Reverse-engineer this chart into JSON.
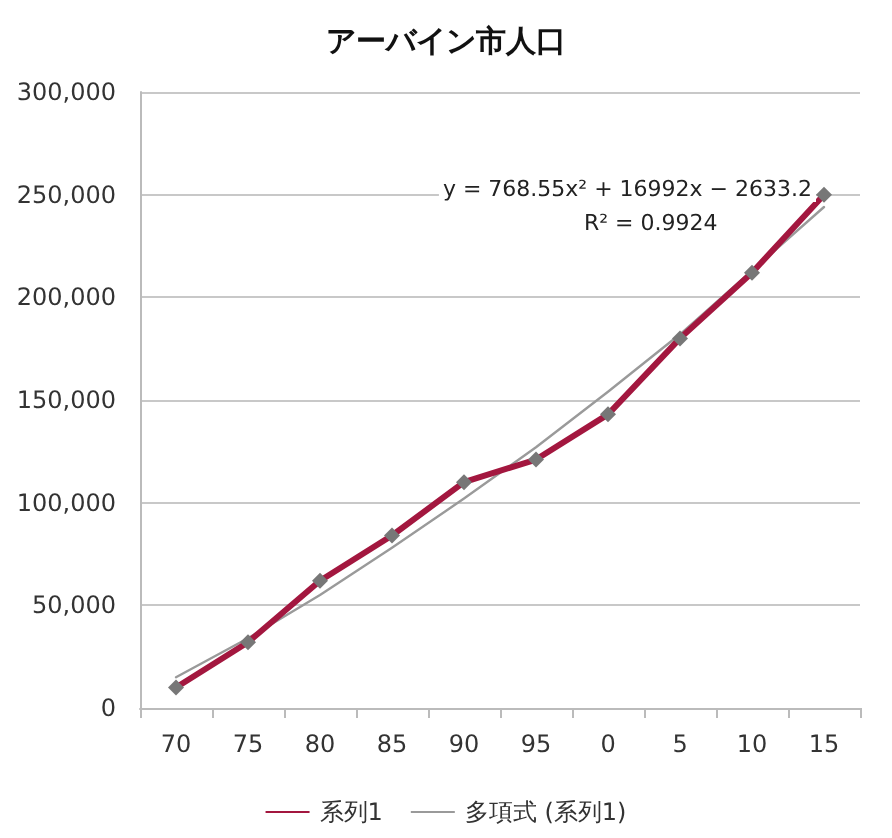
{
  "chart_data": {
    "type": "line",
    "title": "アーバイン市人口",
    "categories": [
      "70",
      "75",
      "80",
      "85",
      "90",
      "95",
      "0",
      "5",
      "10",
      "15"
    ],
    "series": [
      {
        "name": "系列1",
        "color": "#a3173f",
        "values": [
          10000,
          32000,
          62000,
          84000,
          110000,
          121000,
          143000,
          180000,
          212000,
          250000
        ],
        "marker": "diamond"
      },
      {
        "name": "多項式 (系列1)",
        "color": "#9a9a9a",
        "values": [
          15000,
          34000,
          55000,
          78000,
          102000,
          127000,
          154000,
          182000,
          213000,
          244000
        ],
        "marker": "none"
      }
    ],
    "ylim": [
      0,
      300000
    ],
    "yticks": [
      0,
      {
        "value": 50000,
        "label": "50,000"
      },
      {
        "value": 100000,
        "label": "100,000"
      },
      {
        "value": 150000,
        "label": "150,000"
      },
      {
        "value": 200000,
        "label": "200,000"
      },
      {
        "value": 250000,
        "label": "250,000"
      },
      {
        "value": 300000,
        "label": "300,000"
      }
    ],
    "grid": "y",
    "legend": "bottom",
    "line_style": "solid",
    "annotations": [
      "y = 768.55x² + 16992x − 2633.2",
      "R² = 0.9924"
    ]
  }
}
